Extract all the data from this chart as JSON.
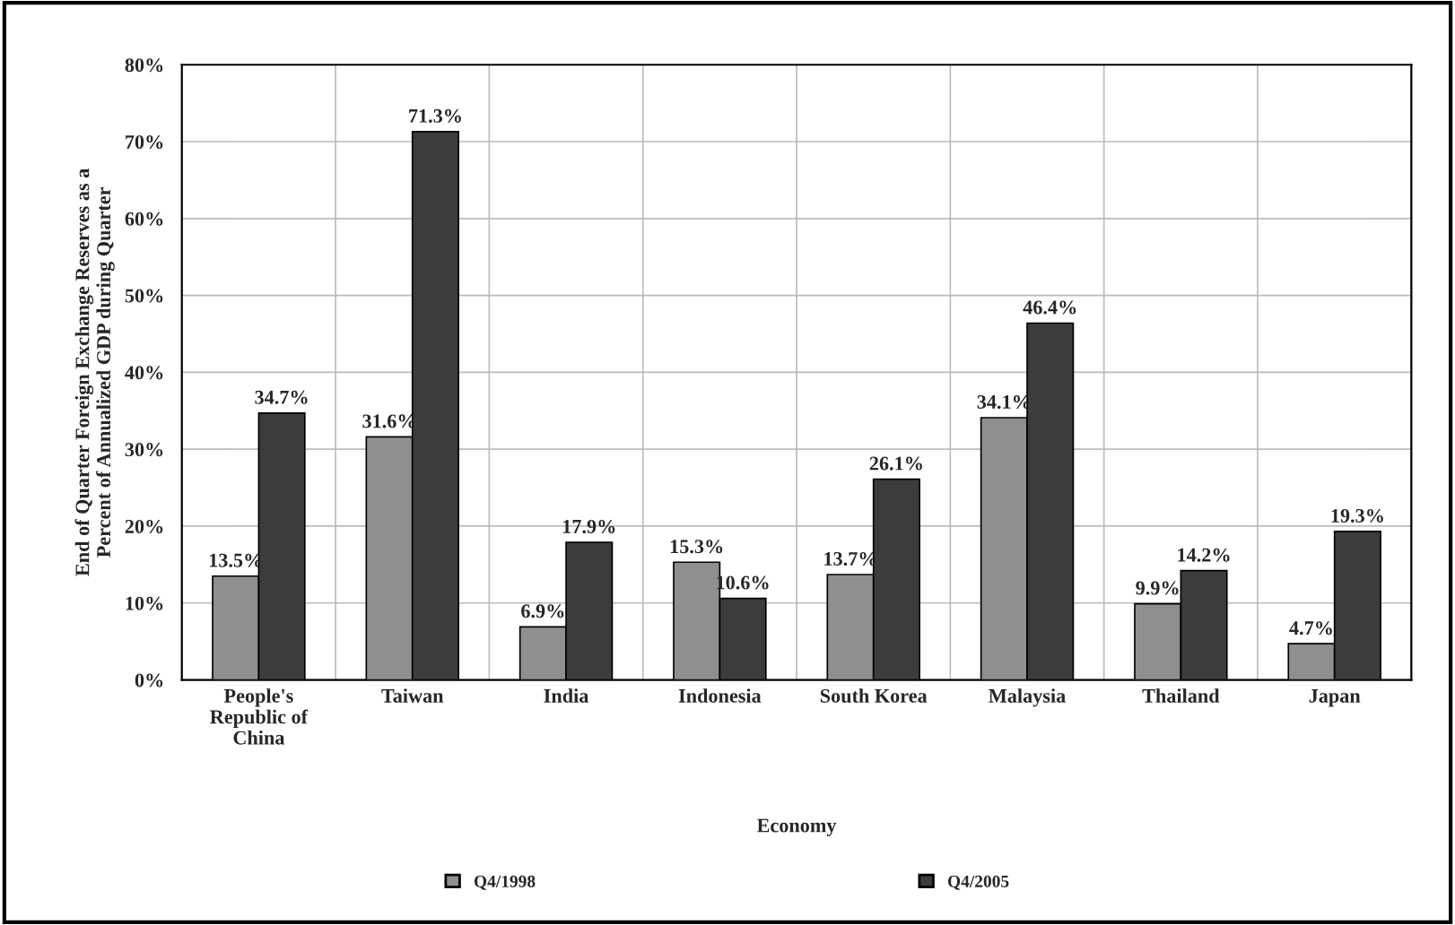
{
  "chart_data": {
    "type": "bar",
    "categories": [
      "People's\nRepublic of\nChina",
      "Taiwan",
      "India",
      "Indonesia",
      "South Korea",
      "Malaysia",
      "Thailand",
      "Japan"
    ],
    "series": [
      {
        "name": "Q4/1998",
        "color": "#8f8f8f",
        "values": [
          13.5,
          31.6,
          6.9,
          15.3,
          13.7,
          34.1,
          9.9,
          4.7
        ],
        "value_labels": [
          "13.5%",
          "31.6%",
          "6.9%",
          "15.3%",
          "13.7%",
          "34.1%",
          "9.9%",
          "4.7%"
        ]
      },
      {
        "name": "Q4/2005",
        "color": "#3c3c3c",
        "values": [
          34.7,
          71.3,
          17.9,
          10.6,
          26.1,
          46.4,
          14.2,
          19.3
        ],
        "value_labels": [
          "34.7%",
          "71.3%",
          "17.9%",
          "10.6%",
          "26.1%",
          "46.4%",
          "14.2%",
          "19.3%"
        ]
      }
    ],
    "xlabel": "Economy",
    "ylabel": "End of Quarter Foreign Exchange Reserves as a\nPercent of Annualized GDP during Quarter",
    "ylim": [
      0,
      80
    ],
    "yticks": [
      {
        "value": 0,
        "label": "0%"
      },
      {
        "value": 10,
        "label": "10%"
      },
      {
        "value": 20,
        "label": "20%"
      },
      {
        "value": 30,
        "label": "30%"
      },
      {
        "value": 40,
        "label": "40%"
      },
      {
        "value": 50,
        "label": "50%"
      },
      {
        "value": 60,
        "label": "60%"
      },
      {
        "value": 70,
        "label": "70%"
      },
      {
        "value": 80,
        "label": "80%"
      }
    ],
    "grid": true,
    "legend": "bottom"
  }
}
